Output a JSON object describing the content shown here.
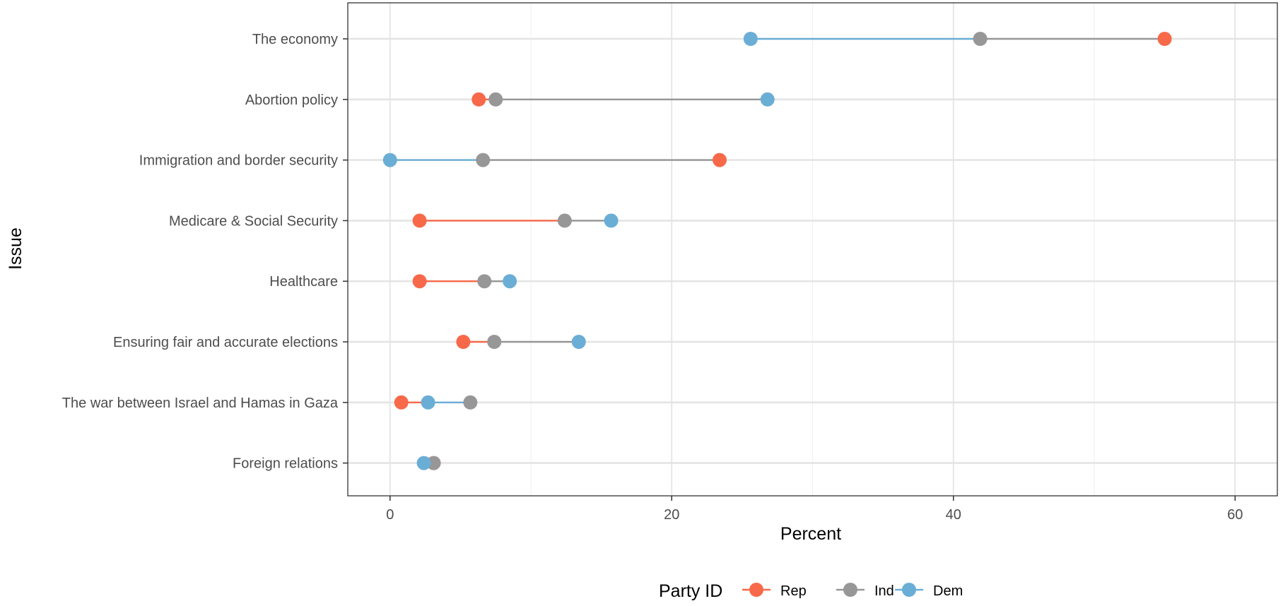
{
  "chart_data": {
    "type": "dot-range",
    "title": "",
    "xlabel": "Percent",
    "ylabel": "Issue",
    "xlim": [
      -3,
      63
    ],
    "x_ticks": [
      0,
      20,
      40,
      60
    ],
    "grid": true,
    "legend": {
      "title": "Party ID",
      "placement": "bottom",
      "entries": [
        "Rep",
        "Ind",
        "Dem"
      ]
    },
    "categories": [
      "The economy",
      "Abortion policy",
      "Immigration and border security",
      "Medicare & Social Security",
      "Healthcare",
      "Ensuring fair and accurate elections",
      "The war between Israel and Hamas in Gaza",
      "Foreign relations"
    ],
    "series": [
      {
        "name": "Rep",
        "color": "#F8694A",
        "values": [
          55.0,
          6.3,
          23.4,
          2.1,
          2.1,
          5.2,
          0.8,
          3.1
        ]
      },
      {
        "name": "Ind",
        "color": "#979797",
        "values": [
          41.9,
          7.5,
          6.6,
          12.4,
          6.7,
          7.4,
          5.7,
          3.1
        ]
      },
      {
        "name": "Dem",
        "color": "#6AAED6",
        "values": [
          25.6,
          26.8,
          0.0,
          15.7,
          8.5,
          13.4,
          2.7,
          2.4
        ]
      }
    ]
  }
}
